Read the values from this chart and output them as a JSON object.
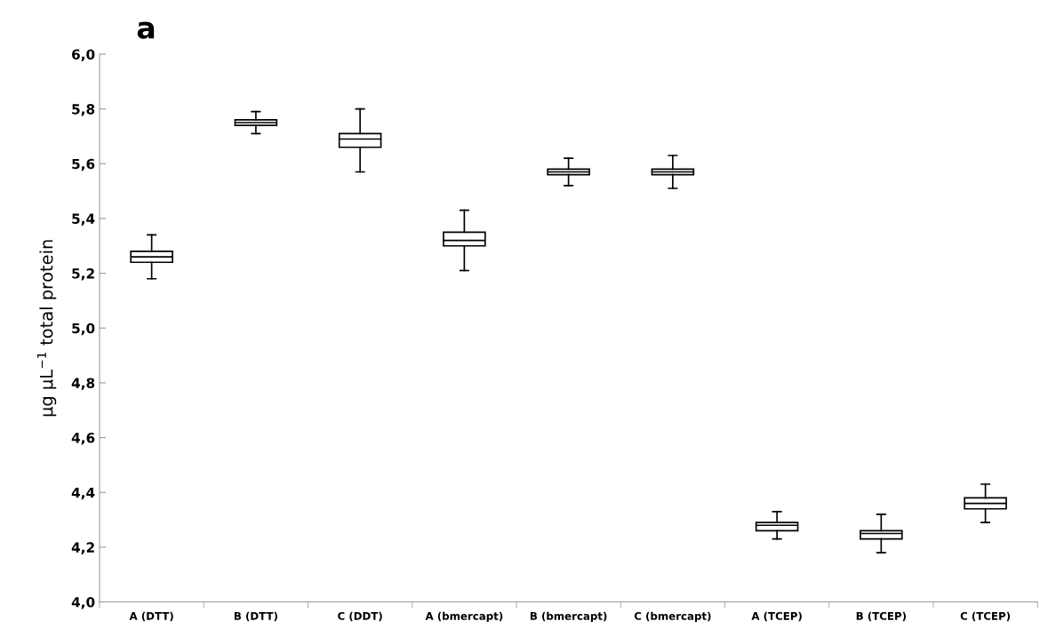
{
  "chart_data": {
    "type": "box",
    "title": "a",
    "ylabel": "μg μL$^{−1}$ total protein",
    "categories": [
      "A (DTT)",
      "B (DTT)",
      "C (DDT)",
      "A (bmercapt)",
      "B (bmercapt)",
      "C (bmercapt)",
      "A (TCEP)",
      "B (TCEP)",
      "C (TCEP)"
    ],
    "boxes": [
      {
        "low": 5.18,
        "q1": 5.24,
        "median": 5.26,
        "q3": 5.28,
        "high": 5.34
      },
      {
        "low": 5.71,
        "q1": 5.74,
        "median": 5.75,
        "q3": 5.76,
        "high": 5.79
      },
      {
        "low": 5.57,
        "q1": 5.66,
        "median": 5.69,
        "q3": 5.71,
        "high": 5.8
      },
      {
        "low": 5.21,
        "q1": 5.3,
        "median": 5.32,
        "q3": 5.35,
        "high": 5.43
      },
      {
        "low": 5.52,
        "q1": 5.56,
        "median": 5.57,
        "q3": 5.58,
        "high": 5.62
      },
      {
        "low": 5.51,
        "q1": 5.56,
        "median": 5.57,
        "q3": 5.58,
        "high": 5.63
      },
      {
        "low": 4.23,
        "q1": 4.26,
        "median": 4.28,
        "q3": 4.29,
        "high": 4.33
      },
      {
        "low": 4.18,
        "q1": 4.23,
        "median": 4.25,
        "q3": 4.26,
        "high": 4.32
      },
      {
        "low": 4.29,
        "q1": 4.34,
        "median": 4.36,
        "q3": 4.38,
        "high": 4.43
      }
    ],
    "ylim": [
      4.0,
      6.0
    ],
    "yticks": [
      {
        "value": 4.0,
        "label": "4,0"
      },
      {
        "value": 4.2,
        "label": "4,2"
      },
      {
        "value": 4.4,
        "label": "4,4"
      },
      {
        "value": 4.6,
        "label": "4,6"
      },
      {
        "value": 4.8,
        "label": "4,8"
      },
      {
        "value": 5.0,
        "label": "5,0"
      },
      {
        "value": 5.2,
        "label": "5,2"
      },
      {
        "value": 5.4,
        "label": "5,4"
      },
      {
        "value": 5.6,
        "label": "5,6"
      },
      {
        "value": 5.8,
        "label": "5,8"
      },
      {
        "value": 6.0,
        "label": "6,0"
      }
    ],
    "grid": false
  }
}
